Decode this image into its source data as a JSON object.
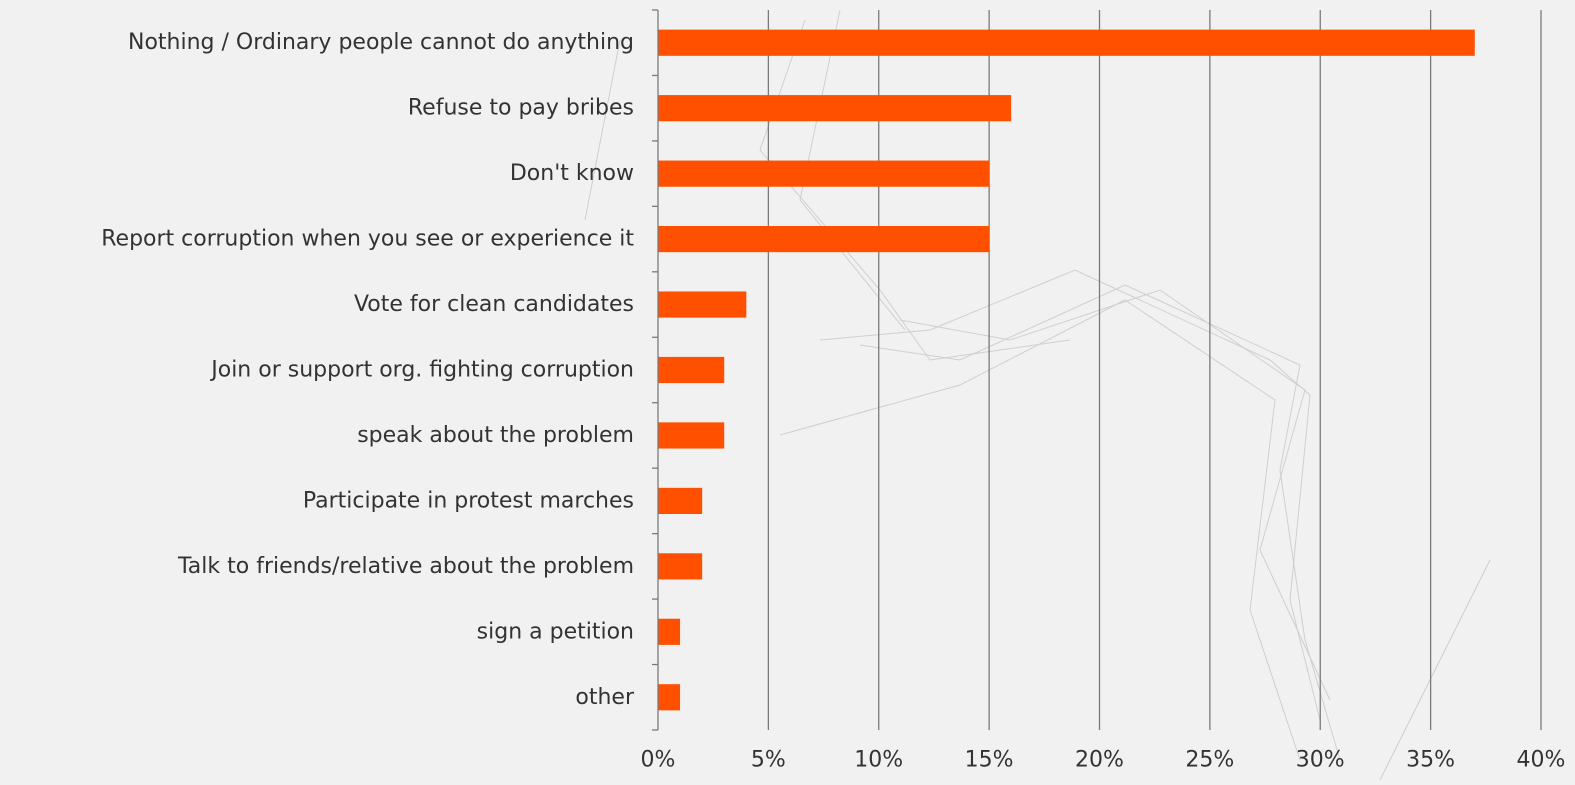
{
  "chart_data": {
    "type": "bar",
    "orientation": "horizontal",
    "title": "",
    "xlabel": "",
    "ylabel": "",
    "categories": [
      "Nothing / Ordinary people cannot do anything",
      "Refuse to pay bribes",
      "Don't know",
      "Report corruption when you see or experience it",
      "Vote for clean candidates ",
      "Join or support org. fighting corruption",
      "speak about the problem",
      "Participate in protest marches",
      "Talk to friends/relative about the problem",
      "sign a petition",
      "other"
    ],
    "values": [
      37,
      16,
      15,
      15,
      4,
      3,
      3,
      2,
      2,
      1,
      1
    ],
    "xlim": [
      0,
      40
    ],
    "xticks": [
      0,
      5,
      10,
      15,
      20,
      25,
      30,
      35,
      40
    ],
    "xtick_labels": [
      "0%",
      "5%",
      "10%",
      "15%",
      "20%",
      "25%",
      "30%",
      "35%",
      "40%"
    ],
    "grid": "vertical",
    "legend": "none",
    "bar_color": "#ff5000"
  }
}
